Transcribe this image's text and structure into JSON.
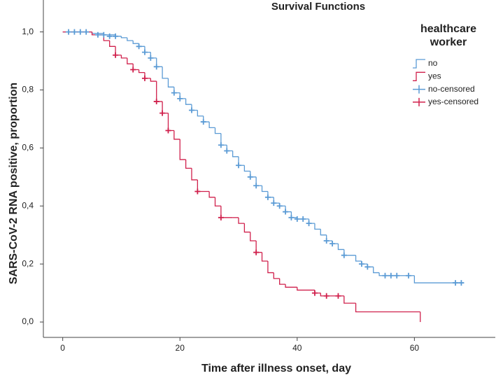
{
  "chart_data": {
    "type": "step",
    "title": "Survival Functions",
    "x_label": "Time after illness onset, day",
    "y_label": "SARS-CoV-2 RNA positive, proportion",
    "legend_title": "healthcare worker",
    "xlim": [
      -3.3,
      73.8
    ],
    "xticks": [
      0,
      20,
      40,
      60
    ],
    "ylim": [
      -0.053,
      1.11
    ],
    "yticks": [
      {
        "value": 0,
        "label": "0,0"
      },
      {
        "value": 0.2,
        "label": "0,2"
      },
      {
        "value": 0.4,
        "label": "0,4"
      },
      {
        "value": 0.6,
        "label": "0,6"
      },
      {
        "value": 0.8,
        "label": "0,8"
      },
      {
        "value": 1.0,
        "label": "1,0"
      }
    ],
    "series": [
      {
        "name": "no",
        "color": "#5b9bd5",
        "x": [
          0,
          5,
          7,
          9,
          10,
          11,
          12,
          13,
          14,
          15,
          16,
          17,
          18,
          19,
          20,
          21,
          22,
          23,
          24,
          25,
          26,
          27,
          28,
          29,
          30,
          31,
          32,
          33,
          34,
          35,
          36,
          37,
          38,
          39,
          40,
          42,
          43,
          44,
          45,
          46,
          47,
          48,
          50,
          51,
          52,
          53,
          54,
          60,
          68
        ],
        "values": [
          1.0,
          0.995,
          0.99,
          0.985,
          0.98,
          0.97,
          0.96,
          0.95,
          0.93,
          0.91,
          0.88,
          0.84,
          0.81,
          0.79,
          0.77,
          0.75,
          0.73,
          0.71,
          0.69,
          0.67,
          0.65,
          0.61,
          0.59,
          0.57,
          0.54,
          0.52,
          0.5,
          0.47,
          0.45,
          0.43,
          0.41,
          0.4,
          0.38,
          0.36,
          0.355,
          0.34,
          0.32,
          0.3,
          0.28,
          0.27,
          0.25,
          0.23,
          0.21,
          0.2,
          0.19,
          0.17,
          0.16,
          0.135,
          0.135
        ]
      },
      {
        "name": "yes",
        "color": "#d0204c",
        "x": [
          0,
          5,
          7,
          8,
          9,
          10,
          11,
          12,
          13,
          14,
          15,
          16,
          17,
          18,
          19,
          20,
          21,
          22,
          23,
          25,
          26,
          27,
          29,
          30,
          31,
          32,
          33,
          34,
          35,
          36,
          37,
          38,
          40,
          43,
          44,
          48,
          50,
          61
        ],
        "values": [
          1.0,
          0.99,
          0.97,
          0.95,
          0.92,
          0.91,
          0.89,
          0.87,
          0.86,
          0.84,
          0.83,
          0.76,
          0.72,
          0.66,
          0.63,
          0.56,
          0.53,
          0.49,
          0.45,
          0.43,
          0.4,
          0.36,
          0.36,
          0.34,
          0.31,
          0.28,
          0.24,
          0.21,
          0.17,
          0.15,
          0.13,
          0.12,
          0.11,
          0.1,
          0.09,
          0.065,
          0.035,
          0
        ]
      },
      {
        "name": "no-censored",
        "color": "#5b9bd5",
        "x": [
          1,
          2,
          3,
          4,
          6,
          7,
          8,
          9,
          13,
          14,
          15,
          16,
          19,
          20,
          22,
          24,
          27,
          28,
          30,
          32,
          33,
          35,
          36,
          37,
          38,
          39,
          40,
          41,
          42,
          45,
          46,
          48,
          51,
          52,
          55,
          56,
          57,
          59,
          67,
          68
        ],
        "values": [
          1,
          1,
          1,
          1,
          0.99,
          0.99,
          0.985,
          0.985,
          0.95,
          0.93,
          0.91,
          0.88,
          0.79,
          0.77,
          0.73,
          0.69,
          0.61,
          0.59,
          0.54,
          0.5,
          0.47,
          0.43,
          0.41,
          0.4,
          0.38,
          0.36,
          0.355,
          0.355,
          0.34,
          0.28,
          0.27,
          0.23,
          0.2,
          0.19,
          0.16,
          0.16,
          0.16,
          0.16,
          0.135,
          0.135
        ]
      },
      {
        "name": "yes-censored",
        "color": "#d0204c",
        "x": [
          9,
          12,
          14,
          16,
          17,
          18,
          23,
          27,
          33,
          43,
          45,
          47
        ],
        "values": [
          0.92,
          0.87,
          0.84,
          0.76,
          0.72,
          0.66,
          0.45,
          0.36,
          0.24,
          0.1,
          0.09,
          0.09
        ]
      }
    ]
  }
}
